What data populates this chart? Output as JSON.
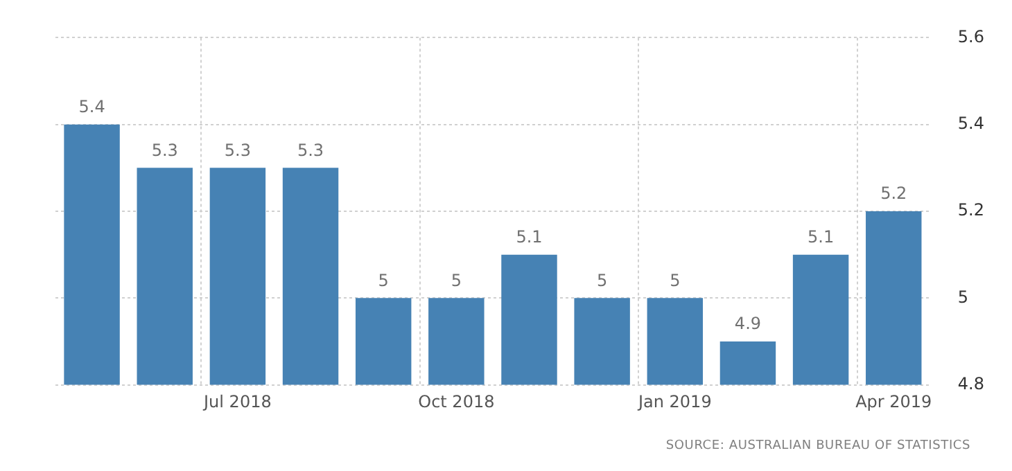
{
  "chart_data": {
    "type": "bar",
    "categories": [
      null,
      null,
      "Jul 2018",
      null,
      null,
      "Oct 2018",
      null,
      null,
      "Jan 2019",
      null,
      null,
      "Apr 2019"
    ],
    "values": [
      5.4,
      5.3,
      5.3,
      5.3,
      5,
      5,
      5.1,
      5,
      5,
      4.9,
      5.1,
      5.2
    ],
    "color": "#4682b4",
    "ylim": [
      4.8,
      5.6
    ],
    "yticks": [
      4.8,
      5,
      5.2,
      5.4,
      5.6
    ],
    "grid": true,
    "data_labels": true,
    "annotations": [
      "SOURCE: AUSTRALIAN BUREAU OF STATISTICS"
    ]
  }
}
